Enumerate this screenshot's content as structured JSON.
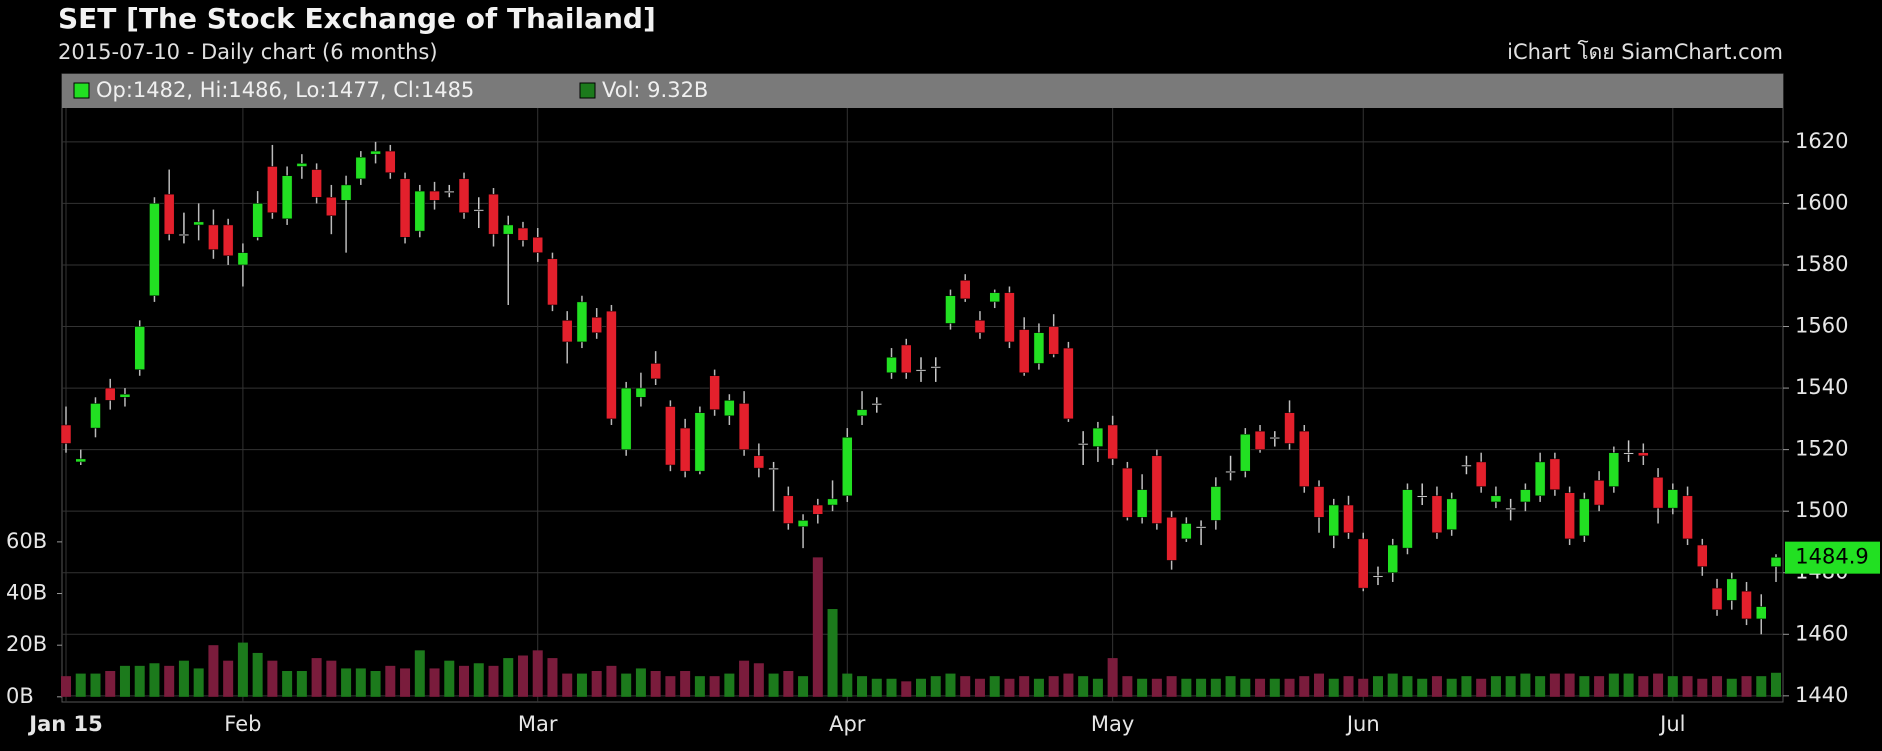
{
  "chart_data": {
    "type": "candlestick",
    "title": "SET [The Stock Exchange of Thailand]",
    "subtitle": "2015-07-10 - Daily chart (6 months)",
    "credit": "iChart โดย SiamChart.com",
    "legend_price": "Op:1482, Hi:1486, Lo:1477, Cl:1485",
    "legend_volume": "Vol: 9.32B",
    "last_price": 1484.9,
    "up_color": "#22e022",
    "down_color": "#e3202c",
    "flat_color": "#cccccc",
    "volume_up_color": "#1c7a1c",
    "volume_down_color": "#7a1c3c",
    "grid": true,
    "categories": [
      "Jan 15",
      null,
      null,
      null,
      null,
      null,
      null,
      null,
      null,
      null,
      null,
      null,
      "Feb",
      null,
      null,
      null,
      null,
      null,
      null,
      null,
      null,
      null,
      null,
      null,
      null,
      null,
      null,
      null,
      null,
      null,
      null,
      null,
      "Mar",
      null,
      null,
      null,
      null,
      null,
      null,
      null,
      null,
      null,
      null,
      null,
      null,
      null,
      null,
      null,
      null,
      null,
      null,
      null,
      null,
      "Apr",
      null,
      null,
      null,
      null,
      null,
      null,
      null,
      null,
      null,
      null,
      null,
      null,
      null,
      null,
      null,
      null,
      null,
      "May",
      null,
      null,
      null,
      null,
      null,
      null,
      null,
      null,
      null,
      null,
      null,
      null,
      null,
      null,
      null,
      null,
      "Jun",
      null,
      null,
      null,
      null,
      null,
      null,
      null,
      null,
      null,
      null,
      null,
      null,
      null,
      null,
      null,
      null,
      null,
      null,
      null,
      null,
      "Jul",
      null,
      null,
      null,
      null,
      null,
      null,
      null
    ],
    "open": [
      1528,
      1516,
      1527,
      1540,
      1537,
      1546,
      1570,
      1603,
      1590,
      1593,
      1593,
      1593,
      1580,
      1589,
      1612,
      1595,
      1612,
      1611,
      1602,
      1601,
      1608,
      1616,
      1617,
      1608,
      1591,
      1604,
      1604,
      1608,
      1598,
      1603,
      1590,
      1592,
      1589,
      1582,
      1562,
      1555,
      1563,
      1565,
      1520,
      1537,
      1548,
      1534,
      1527,
      1513,
      1544,
      1531,
      1535,
      1518,
      1514,
      1505,
      1495,
      1502,
      1502,
      1505,
      1531,
      1535,
      1545,
      1554,
      1546,
      1547,
      1561,
      1575,
      1562,
      1568,
      1571,
      1559,
      1548,
      1560,
      1553,
      1522,
      1521,
      1528,
      1514,
      1498,
      1518,
      1498,
      1491,
      1495,
      1497,
      1513,
      1513,
      1526,
      1524,
      1532,
      1526,
      1508,
      1492,
      1502,
      1491,
      1479,
      1480,
      1488,
      1505,
      1505,
      1494,
      1515,
      1516,
      1503,
      1501,
      1503,
      1505,
      1517,
      1506,
      1492,
      1510,
      1508,
      1519,
      1519,
      1511,
      1501,
      1505,
      1489,
      1475,
      1471,
      1474,
      1465,
      1482
    ],
    "high": [
      1534,
      1520,
      1537,
      1543,
      1540,
      1562,
      1602,
      1611,
      1597,
      1600,
      1598,
      1595,
      1587,
      1604,
      1619,
      1612,
      1616,
      1613,
      1606,
      1609,
      1617,
      1620,
      1619,
      1610,
      1606,
      1607,
      1606,
      1610,
      1602,
      1605,
      1596,
      1594,
      1592,
      1584,
      1565,
      1570,
      1566,
      1567,
      1542,
      1545,
      1552,
      1536,
      1530,
      1534,
      1546,
      1538,
      1539,
      1522,
      1516,
      1508,
      1499,
      1504,
      1510,
      1527,
      1539,
      1537,
      1553,
      1556,
      1550,
      1550,
      1572,
      1577,
      1565,
      1572,
      1573,
      1563,
      1561,
      1564,
      1555,
      1526,
      1529,
      1531,
      1516,
      1512,
      1520,
      1500,
      1498,
      1497,
      1511,
      1518,
      1527,
      1528,
      1526,
      1536,
      1528,
      1510,
      1504,
      1505,
      1493,
      1482,
      1491,
      1509,
      1509,
      1508,
      1506,
      1518,
      1519,
      1508,
      1504,
      1509,
      1519,
      1519,
      1508,
      1506,
      1513,
      1521,
      1523,
      1522,
      1514,
      1509,
      1508,
      1491,
      1478,
      1480,
      1477,
      1473,
      1486
    ],
    "low": [
      1519,
      1515,
      1524,
      1533,
      1534,
      1544,
      1568,
      1588,
      1587,
      1588,
      1582,
      1580,
      1573,
      1588,
      1595,
      1593,
      1608,
      1600,
      1590,
      1584,
      1606,
      1613,
      1608,
      1587,
      1589,
      1598,
      1602,
      1595,
      1592,
      1586,
      1567,
      1586,
      1581,
      1565,
      1548,
      1553,
      1556,
      1528,
      1518,
      1534,
      1541,
      1513,
      1511,
      1512,
      1531,
      1528,
      1518,
      1511,
      1500,
      1494,
      1488,
      1496,
      1500,
      1503,
      1528,
      1532,
      1543,
      1543,
      1542,
      1542,
      1559,
      1568,
      1556,
      1566,
      1553,
      1544,
      1546,
      1550,
      1529,
      1515,
      1516,
      1515,
      1497,
      1496,
      1494,
      1481,
      1490,
      1489,
      1494,
      1510,
      1511,
      1519,
      1521,
      1520,
      1506,
      1493,
      1488,
      1491,
      1474,
      1476,
      1477,
      1486,
      1502,
      1491,
      1492,
      1512,
      1506,
      1501,
      1497,
      1500,
      1503,
      1505,
      1489,
      1490,
      1500,
      1506,
      1516,
      1515,
      1496,
      1499,
      1489,
      1479,
      1466,
      1468,
      1463,
      1460,
      1477
    ],
    "close": [
      1522,
      1517,
      1535,
      1536,
      1538,
      1560,
      1600,
      1590,
      1590,
      1594,
      1585,
      1583,
      1584,
      1600,
      1597,
      1609,
      1613,
      1602,
      1596,
      1606,
      1615,
      1617,
      1610,
      1589,
      1604,
      1601,
      1604,
      1597,
      1598,
      1590,
      1593,
      1588,
      1584,
      1567,
      1555,
      1568,
      1558,
      1530,
      1540,
      1540,
      1543,
      1515,
      1513,
      1532,
      1533,
      1536,
      1520,
      1514,
      1514,
      1496,
      1497,
      1499,
      1504,
      1524,
      1533,
      1535,
      1550,
      1545,
      1546,
      1547,
      1570,
      1569,
      1558,
      1571,
      1555,
      1545,
      1558,
      1551,
      1530,
      1522,
      1527,
      1517,
      1498,
      1507,
      1496,
      1484,
      1496,
      1495,
      1508,
      1513,
      1525,
      1520,
      1524,
      1522,
      1508,
      1498,
      1502,
      1493,
      1475,
      1479,
      1489,
      1507,
      1505,
      1493,
      1504,
      1515,
      1508,
      1505,
      1501,
      1507,
      1516,
      1507,
      1491,
      1504,
      1502,
      1519,
      1519,
      1518,
      1501,
      1507,
      1491,
      1482,
      1468,
      1478,
      1465,
      1469,
      1485
    ],
    "volume": [
      8,
      9,
      9,
      10,
      12,
      12,
      13,
      12,
      14,
      11,
      20,
      14,
      21,
      17,
      14,
      10,
      10,
      15,
      14,
      11,
      11,
      10,
      12,
      11,
      18,
      11,
      14,
      12,
      13,
      12,
      15,
      16,
      18,
      15,
      9,
      9,
      10,
      12,
      9,
      11,
      10,
      8,
      10,
      8,
      8,
      9,
      14,
      13,
      9,
      10,
      8,
      54,
      34,
      9,
      8,
      7,
      7,
      6,
      7,
      8,
      9,
      8,
      7,
      8,
      7,
      8,
      7,
      8,
      9,
      8,
      7,
      15,
      8,
      7,
      7,
      8,
      7,
      7,
      7,
      8,
      7,
      7,
      7,
      7,
      8,
      9,
      7,
      8,
      7,
      8,
      9,
      8,
      7,
      8,
      7,
      8,
      7,
      8,
      8,
      9,
      8,
      9,
      9,
      8,
      8,
      9,
      9,
      8,
      9,
      8,
      8,
      7,
      8,
      7,
      8,
      8,
      9.32
    ],
    "ylim": [
      1438,
      1631
    ],
    "yticks": [
      1440,
      1460,
      1480,
      1500,
      1520,
      1540,
      1560,
      1580,
      1600,
      1620
    ],
    "y2lim": [
      -2,
      228
    ],
    "y2ticks": [
      {
        "value": 0,
        "label": "0B"
      },
      {
        "value": 20,
        "label": "20B"
      },
      {
        "value": 40,
        "label": "40B"
      },
      {
        "value": 60,
        "label": "60B"
      }
    ]
  }
}
